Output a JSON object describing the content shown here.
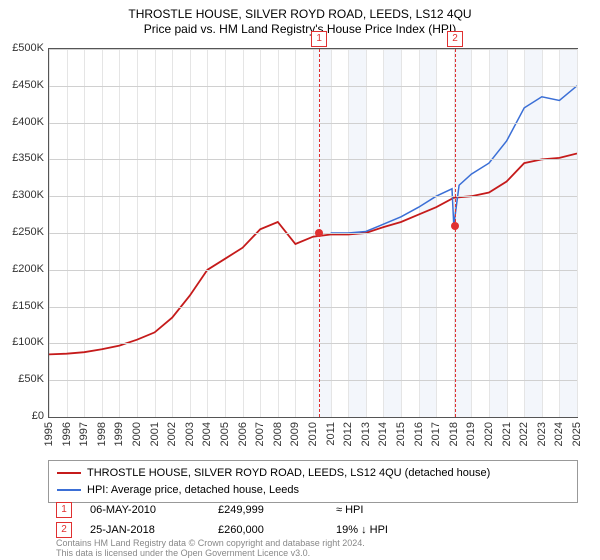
{
  "chart": {
    "title": "THROSTLE HOUSE, SILVER ROYD ROAD, LEEDS, LS12 4QU",
    "subtitle": "Price paid vs. HM Land Registry's House Price Index (HPI)",
    "type": "line",
    "title_fontsize": 12,
    "subtitle_fontsize": 12,
    "axis_fontsize": 11,
    "background_color": "#ffffff",
    "grid_color_h": "#d0d0d0",
    "grid_color_v": "#e5e5e5",
    "border_color": "#555555",
    "band_color": "#f3f6fb",
    "y": {
      "min": 0,
      "max": 500000,
      "step": 50000,
      "labels": [
        "£0",
        "£50K",
        "£100K",
        "£150K",
        "£200K",
        "£250K",
        "£300K",
        "£350K",
        "£400K",
        "£450K",
        "£500K"
      ]
    },
    "x": {
      "min": 1995,
      "max": 2025,
      "step": 1,
      "labels": [
        "1995",
        "1996",
        "1997",
        "1998",
        "1999",
        "2000",
        "2001",
        "2002",
        "2003",
        "2004",
        "2005",
        "2006",
        "2007",
        "2008",
        "2009",
        "2010",
        "2011",
        "2012",
        "2013",
        "2014",
        "2015",
        "2016",
        "2017",
        "2018",
        "2019",
        "2020",
        "2021",
        "2022",
        "2023",
        "2024",
        "2025"
      ]
    },
    "series": [
      {
        "name": "THROSTLE HOUSE, SILVER ROYD ROAD, LEEDS, LS12 4QU (detached house)",
        "color": "#c51b1b",
        "width": 1.8,
        "points": [
          [
            1995,
            85000
          ],
          [
            1996,
            86000
          ],
          [
            1997,
            88000
          ],
          [
            1998,
            92000
          ],
          [
            1999,
            97000
          ],
          [
            2000,
            105000
          ],
          [
            2001,
            115000
          ],
          [
            2002,
            135000
          ],
          [
            2003,
            165000
          ],
          [
            2004,
            200000
          ],
          [
            2005,
            215000
          ],
          [
            2006,
            230000
          ],
          [
            2007,
            255000
          ],
          [
            2008,
            265000
          ],
          [
            2009,
            235000
          ],
          [
            2010,
            245000
          ],
          [
            2011,
            248000
          ],
          [
            2012,
            248000
          ],
          [
            2013,
            250000
          ],
          [
            2014,
            258000
          ],
          [
            2015,
            265000
          ],
          [
            2016,
            275000
          ],
          [
            2017,
            285000
          ],
          [
            2018,
            298000
          ],
          [
            2019,
            300000
          ],
          [
            2020,
            305000
          ],
          [
            2021,
            320000
          ],
          [
            2022,
            345000
          ],
          [
            2023,
            350000
          ],
          [
            2024,
            352000
          ],
          [
            2025,
            358000
          ]
        ]
      },
      {
        "name": "HPI: Average price, detached house, Leeds",
        "color": "#3b6fd6",
        "width": 1.5,
        "points": [
          [
            2011,
            250000
          ],
          [
            2012,
            250000
          ],
          [
            2013,
            252000
          ],
          [
            2014,
            262000
          ],
          [
            2015,
            272000
          ],
          [
            2016,
            285000
          ],
          [
            2017,
            300000
          ],
          [
            2017.9,
            310000
          ],
          [
            2018,
            260000
          ],
          [
            2018.3,
            315000
          ],
          [
            2019,
            330000
          ],
          [
            2020,
            345000
          ],
          [
            2021,
            375000
          ],
          [
            2022,
            420000
          ],
          [
            2023,
            435000
          ],
          [
            2024,
            430000
          ],
          [
            2025,
            450000
          ]
        ]
      }
    ],
    "markers": [
      {
        "index": 1,
        "year": 2010.35,
        "value": 249999
      },
      {
        "index": 2,
        "year": 2018.07,
        "value": 260000
      }
    ],
    "marker_color": "#e03030"
  },
  "legend": {
    "items": [
      {
        "label": "THROSTLE HOUSE, SILVER ROYD ROAD, LEEDS, LS12 4QU (detached house)",
        "color": "#c51b1b"
      },
      {
        "label": "HPI: Average price, detached house, Leeds",
        "color": "#3b6fd6"
      }
    ]
  },
  "sales": [
    {
      "index": "1",
      "date": "06-MAY-2010",
      "price": "£249,999",
      "delta": "≈ HPI"
    },
    {
      "index": "2",
      "date": "25-JAN-2018",
      "price": "£260,000",
      "delta": "19% ↓ HPI"
    }
  ],
  "footer": {
    "line1": "Contains HM Land Registry data © Crown copyright and database right 2024.",
    "line2": "This data is licensed under the Open Government Licence v3.0."
  }
}
